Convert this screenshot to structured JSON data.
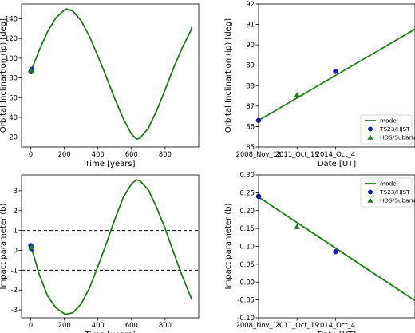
{
  "colors": {
    "model": "#1c7d16",
    "ts23": "#1414d2",
    "hds": "#1c7d16",
    "reference_line": "#000000"
  },
  "chart_data": [
    {
      "type": "line",
      "panel": "top-left",
      "title": "",
      "xlabel": "Time [years]",
      "ylabel": "Orbital Inclinartion (ip) [deg]",
      "xlim": [
        -55,
        1000
      ],
      "ylim": [
        10,
        155
      ],
      "xticks": [
        0,
        200,
        400,
        600,
        800
      ],
      "yticks": [
        20,
        40,
        60,
        80,
        100,
        120,
        140
      ],
      "grid": false,
      "series": [
        {
          "name": "model",
          "style": "line",
          "x": [
            0,
            50,
            100,
            150,
            200,
            213,
            250,
            300,
            350,
            400,
            450,
            500,
            550,
            600,
            630,
            650,
            700,
            750,
            800,
            850,
            900,
            950,
            960
          ],
          "y": [
            86.3,
            108,
            127,
            141,
            149,
            150,
            148,
            138,
            122,
            102,
            81,
            59,
            39,
            23,
            18,
            19,
            29,
            47,
            68,
            90,
            110,
            127,
            132
          ]
        },
        {
          "name": "TS23/HJST",
          "style": "circle",
          "x": [
            0,
            6
          ],
          "y": [
            86.3,
            88.7
          ]
        },
        {
          "name": "HDS/Subaru",
          "style": "triangle",
          "x": [
            3
          ],
          "y": [
            87.55
          ]
        }
      ]
    },
    {
      "type": "line",
      "panel": "top-right",
      "title": "",
      "xlabel": "Date [UT]",
      "ylabel": "Orbital Inclinartion (ip) [deg]",
      "xlim": [
        0,
        12.2
      ],
      "ylim": [
        85,
        92
      ],
      "xticks": [
        0,
        3,
        6
      ],
      "xticklabels": [
        "2008_Nov_12",
        "2011_Oct_19",
        "2014_Oct_4"
      ],
      "yticks": [
        85,
        86,
        87,
        88,
        89,
        90,
        91,
        92
      ],
      "grid": false,
      "legend": "lower right",
      "series": [
        {
          "name": "model",
          "style": "line",
          "x": [
            0,
            12.2
          ],
          "y": [
            86.3,
            90.77
          ]
        },
        {
          "name": "TS23/HJST",
          "style": "circle",
          "x": [
            0,
            6
          ],
          "y": [
            86.3,
            88.7
          ]
        },
        {
          "name": "HDS/Subaru",
          "style": "triangle",
          "x": [
            3
          ],
          "y": [
            87.55
          ]
        }
      ]
    },
    {
      "type": "line",
      "panel": "bottom-left",
      "title": "",
      "xlabel": "Time [years]",
      "ylabel": "Impact parameter (b)",
      "xlim": [
        -55,
        1000
      ],
      "ylim": [
        -3.4,
        3.8
      ],
      "xticks": [
        0,
        200,
        400,
        600,
        800
      ],
      "yticks": [
        -3,
        -2,
        -1,
        0,
        1,
        2,
        3
      ],
      "grid": false,
      "reference_lines": [
        1,
        -1
      ],
      "series": [
        {
          "name": "model",
          "style": "line",
          "x": [
            0,
            50,
            100,
            150,
            200,
            213,
            250,
            300,
            350,
            400,
            450,
            500,
            550,
            600,
            630,
            650,
            700,
            750,
            800,
            850,
            900,
            950,
            960
          ],
          "y": [
            0.24,
            -1.2,
            -2.3,
            -2.9,
            -3.2,
            -3.22,
            -3.15,
            -2.7,
            -1.9,
            -0.8,
            0.35,
            1.55,
            2.65,
            3.35,
            3.55,
            3.5,
            3.05,
            2.15,
            1.1,
            -0.1,
            -1.25,
            -2.3,
            -2.5
          ]
        },
        {
          "name": "TS23/HJST",
          "style": "circle",
          "x": [
            0,
            6
          ],
          "y": [
            0.24,
            0.085
          ]
        },
        {
          "name": "HDS/Subaru",
          "style": "triangle",
          "x": [
            3
          ],
          "y": [
            0.155
          ]
        }
      ]
    },
    {
      "type": "line",
      "panel": "bottom-right",
      "title": "",
      "xlabel": "Date [UT]",
      "ylabel": "Impact parameter (b)",
      "xlim": [
        0,
        12.2
      ],
      "ylim": [
        -0.1,
        0.3
      ],
      "xticks": [
        0,
        3,
        6
      ],
      "xticklabels": [
        "2008_Nov_12",
        "2011_Oct_19",
        "2014_Oct_4"
      ],
      "yticks": [
        -0.1,
        -0.05,
        0.0,
        0.05,
        0.1,
        0.15,
        0.2,
        0.25,
        0.3
      ],
      "yticklabels": [
        "-0.10",
        "-0.05",
        "0.00",
        "0.05",
        "0.10",
        "0.15",
        "0.20",
        "0.25",
        "0.30"
      ],
      "grid": false,
      "legend": "upper right",
      "series": [
        {
          "name": "model",
          "style": "line",
          "x": [
            0,
            12.2
          ],
          "y": [
            0.238,
            -0.052
          ]
        },
        {
          "name": "TS23/HJST",
          "style": "circle",
          "x": [
            0,
            6
          ],
          "y": [
            0.24,
            0.085
          ]
        },
        {
          "name": "HDS/Subaru",
          "style": "triangle",
          "x": [
            3
          ],
          "y": [
            0.155
          ]
        }
      ]
    }
  ]
}
